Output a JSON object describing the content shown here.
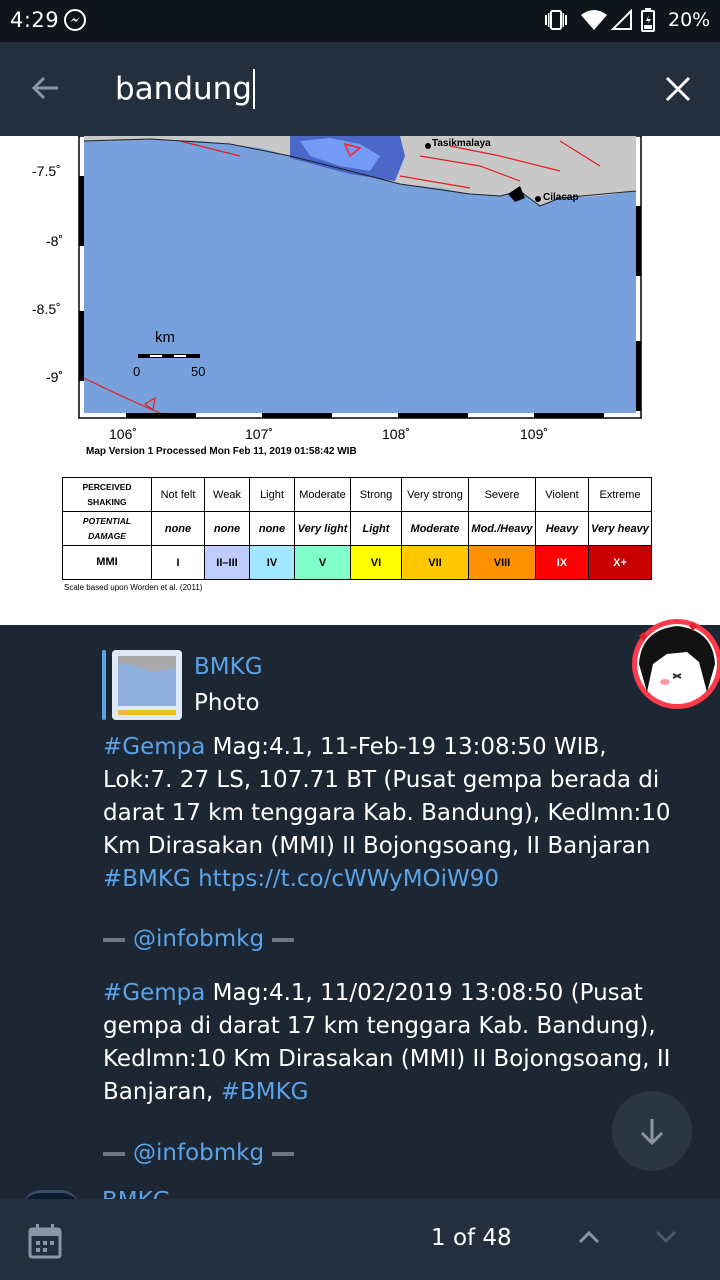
{
  "status": {
    "time": "4:29",
    "battery": "20%"
  },
  "search": {
    "query": "bandung"
  },
  "map": {
    "lat_ticks": [
      "-7.5˚",
      "-8˚",
      "-8.5˚",
      "-9˚"
    ],
    "lon_ticks": [
      "106˚",
      "107˚",
      "108˚",
      "109˚"
    ],
    "places": [
      "Tasikmalaya",
      "Cilacap"
    ],
    "scale_label": "km",
    "scale_0": "0",
    "scale_50": "50",
    "version": "Map Version 1 Processed Mon Feb 11, 2019 01:58:42 WIB",
    "scale_note": "Scale based upon Worden et al. (2011)",
    "table": {
      "row1_header": [
        "PERCEIVED",
        "SHAKING"
      ],
      "row2_header": [
        "POTENTIAL",
        "DAMAGE"
      ],
      "row3_header": "MMI",
      "shaking": [
        "Not felt",
        "Weak",
        "Light",
        "Moderate",
        "Strong",
        "Very strong",
        "Severe",
        "Violent",
        "Extreme"
      ],
      "damage": [
        "none",
        "none",
        "none",
        "Very light",
        "Light",
        "Moderate",
        "Mod./Heavy",
        "Heavy",
        "Very heavy"
      ],
      "mmi": [
        "I",
        "II–III",
        "IV",
        "V",
        "VI",
        "VII",
        "VIII",
        "IX",
        "X+"
      ],
      "colors": [
        "#ffffff",
        "#bfccff",
        "#a0e6ff",
        "#80ffcc",
        "#ffff00",
        "#ffc800",
        "#ff9100",
        "#ff0000",
        "#c80000"
      ]
    }
  },
  "reply": {
    "name": "BMKG",
    "sub": "Photo"
  },
  "message1": {
    "hashtag": "#Gempa",
    "text": " Mag:4.1, 11-Feb-19 13:08:50 WIB, Lok:7. 27 LS, 107.71 BT (Pusat gempa berada di darat 17 km tenggara Kab. Bandung), Kedlmn:10 Km Dirasakan (MMI) II Bojongsoang, II Banjaran ",
    "hashtag2": "#BMKG",
    "link": " https://t.co/cWWyMOiW90"
  },
  "signature1": "@infobmkg",
  "message2": {
    "hashtag": "#Gempa",
    "text": " Mag:4.1, 11/02/2019 13:08:50 (Pusat gempa di darat 17 km tenggara Kab. Bandung), Kedlmn:10 Km Dirasakan (MMI) II Bojongsoang, II Banjaran, ",
    "hashtag2": "#BMKG"
  },
  "signature2": "@infobmkg",
  "peek": {
    "name": "BMKG"
  },
  "bottom": {
    "counter": "1 of 48"
  },
  "colors": {
    "accent": "#5aa3e8",
    "background": "#1d2733",
    "bar": "#232f3d"
  }
}
